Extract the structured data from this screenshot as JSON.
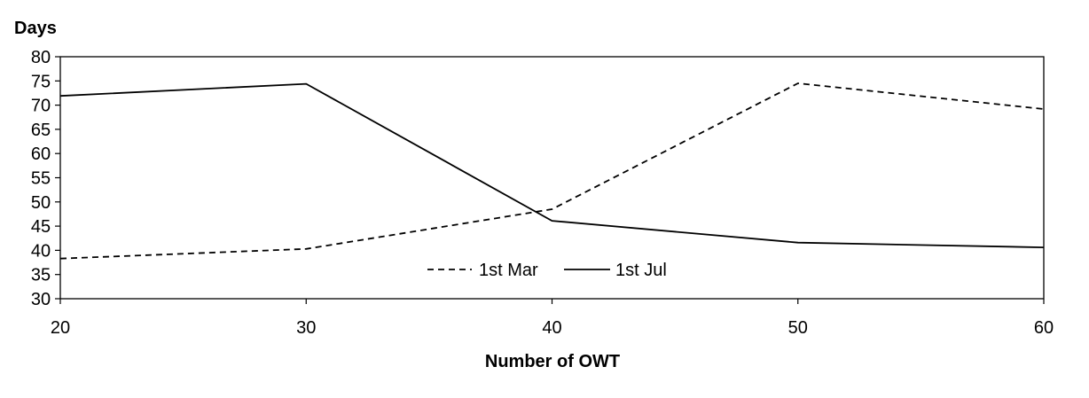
{
  "chart_data": {
    "type": "line",
    "title": "",
    "ylabel": "Days",
    "xlabel": "Number of OWT",
    "x": [
      20,
      30,
      40,
      50,
      60
    ],
    "xticks": [
      "20",
      "30",
      "40",
      "50",
      "60"
    ],
    "yticks": [
      "30",
      "35",
      "40",
      "45",
      "50",
      "55",
      "60",
      "65",
      "70",
      "75",
      "80"
    ],
    "xlim": [
      20,
      60
    ],
    "ylim": [
      30,
      80
    ],
    "grid": false,
    "legend_position": "center-bottom",
    "series": [
      {
        "name": "1st Mar",
        "values": [
          38.3,
          40.3,
          48.5,
          74.5,
          69.2
        ],
        "color": "#000000",
        "line_style": "dashed"
      },
      {
        "name": "1st Jul",
        "values": [
          71.9,
          74.4,
          46.1,
          41.6,
          40.6
        ],
        "color": "#000000",
        "line_style": "solid"
      }
    ]
  }
}
